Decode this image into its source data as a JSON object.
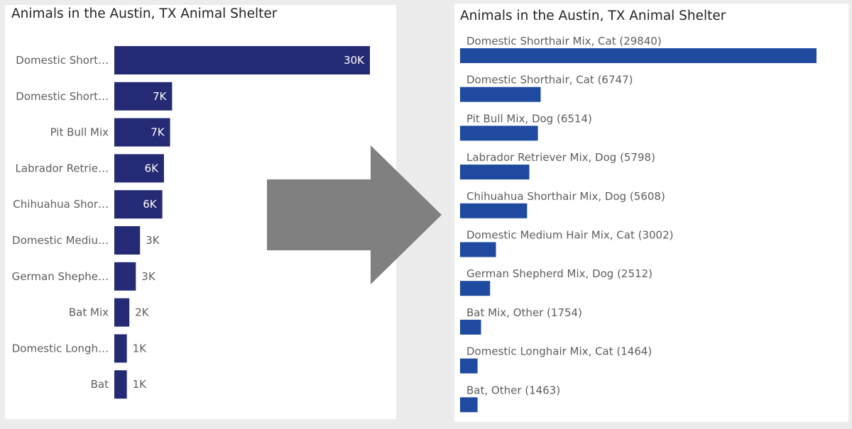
{
  "chart_data": [
    {
      "type": "bar",
      "orientation": "horizontal",
      "title": "Animals in the Austin, TX Animal Shelter",
      "categories": [
        "Domestic Short…",
        "Domestic Short…",
        "Pit Bull Mix",
        "Labrador Retrie…",
        "Chihuahua Shor…",
        "Domestic Mediu…",
        "German Shephe…",
        "Bat Mix",
        "Domestic Longh…",
        "Bat"
      ],
      "values": [
        29840,
        6747,
        6514,
        5798,
        5608,
        3002,
        2512,
        1754,
        1464,
        1463
      ],
      "value_labels": [
        "30K",
        "7K",
        "7K",
        "6K",
        "6K",
        "3K",
        "3K",
        "2K",
        "1K",
        "1K"
      ],
      "color": "#252a74"
    },
    {
      "type": "bar",
      "orientation": "horizontal",
      "title": "Animals in the Austin, TX Animal Shelter",
      "labels": [
        "Domestic Shorthair Mix, Cat (29840)",
        "Domestic Shorthair, Cat (6747)",
        "Pit Bull Mix, Dog (6514)",
        "Labrador Retriever Mix, Dog (5798)",
        "Chihuahua Shorthair Mix, Dog (5608)",
        "Domestic Medium Hair Mix, Cat (3002)",
        "German Shepherd Mix, Dog (2512)",
        "Bat Mix, Other (1754)",
        "Domestic Longhair Mix, Cat (1464)",
        "Bat, Other (1463)"
      ],
      "values": [
        29840,
        6747,
        6514,
        5798,
        5608,
        3002,
        2512,
        1754,
        1464,
        1463
      ],
      "color": "#1f4aa0"
    }
  ],
  "arrow_color": "#808080"
}
